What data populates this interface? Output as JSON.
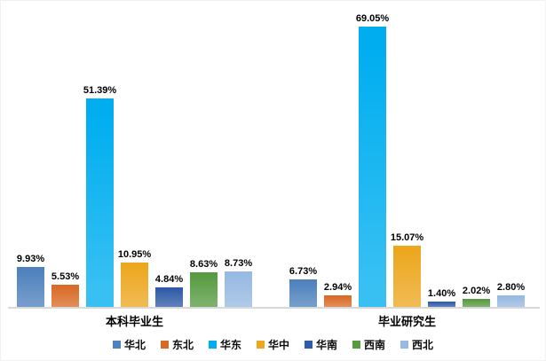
{
  "chart_data": {
    "type": "bar",
    "title": "",
    "xlabel": "",
    "ylabel": "",
    "unit": "%",
    "grid": false,
    "y_axis_visible": false,
    "ylim": [
      0,
      75
    ],
    "legend_position": "bottom",
    "categories": [
      "本科毕业生",
      "毕业研究生"
    ],
    "series": [
      {
        "name": "华北",
        "color": "#4E81BD",
        "values": [
          9.93,
          6.73
        ],
        "labels": [
          "9.93%",
          "6.73%"
        ]
      },
      {
        "name": "东北",
        "color": "#D96A26",
        "values": [
          5.53,
          2.94
        ],
        "labels": [
          "5.53%",
          "2.94%"
        ]
      },
      {
        "name": "华东",
        "color": "#00AEEF",
        "values": [
          51.39,
          69.05
        ],
        "labels": [
          "51.39%",
          "69.05%"
        ]
      },
      {
        "name": "华中",
        "color": "#ECA71E",
        "values": [
          10.95,
          15.07
        ],
        "labels": [
          "10.95%",
          "15.07%"
        ]
      },
      {
        "name": "华南",
        "color": "#2F5BA7",
        "values": [
          4.84,
          1.4
        ],
        "labels": [
          "4.84%",
          "1.40%"
        ]
      },
      {
        "name": "西南",
        "color": "#579B41",
        "values": [
          8.63,
          2.02
        ],
        "labels": [
          "8.63%",
          "2.02%"
        ]
      },
      {
        "name": "西北",
        "color": "#97B9E2",
        "values": [
          8.73,
          2.8
        ],
        "labels": [
          "8.73%",
          "2.80%"
        ]
      }
    ]
  },
  "colors": {
    "axis_line": "#d9d9d9",
    "label_text": "#000000",
    "background": "#ffffff"
  }
}
